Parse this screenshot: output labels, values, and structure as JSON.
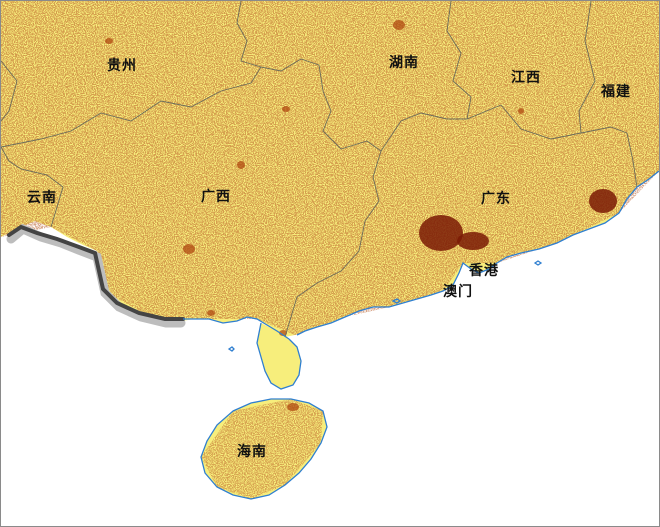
{
  "map": {
    "labels": {
      "guizhou": "贵州",
      "hunan": "湖南",
      "jiangxi": "江西",
      "fujian": "福建",
      "yunnan": "云南",
      "guangxi": "广西",
      "guangdong": "广东",
      "hongkong": "香港",
      "macau": "澳门",
      "hainan": "海南"
    },
    "colors": {
      "land": "#f7ee7c",
      "urban_dark": "#7a1a05",
      "urban_mid": "#b04a10",
      "province_border": "#6b6b5a",
      "coastline": "#2f7fd0",
      "national_border": "#444444",
      "border_shadow": "#bdbdbd",
      "sea": "#ffffff"
    }
  }
}
